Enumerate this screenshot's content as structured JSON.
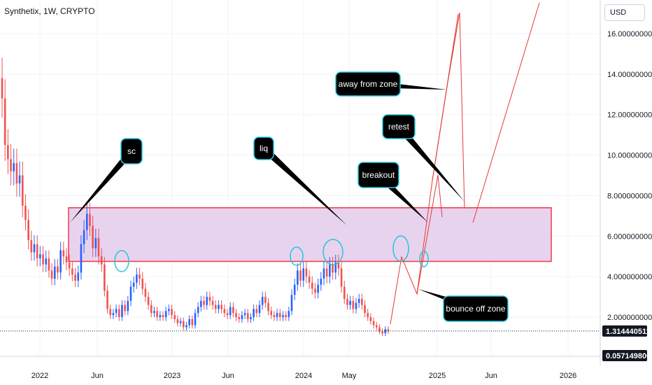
{
  "header": {
    "title": "Synthetix, 1W, CRYPTO",
    "currency": "USD"
  },
  "colors": {
    "up": "#2962ff",
    "down": "#ef5350",
    "zone_fill": "#e8d3ef",
    "zone_border": "#f23645",
    "callout_bg": "#000000",
    "callout_border": "#26c6da",
    "price_badge": "#131722",
    "grid": "#f0f3fa"
  },
  "chart_data": {
    "type": "candlestick",
    "symbol": "Synthetix",
    "interval": "1W",
    "exchange": "CRYPTO",
    "ylim": [
      0,
      17.5
    ],
    "y_ticks": [
      {
        "value": 16,
        "label": "16.000000000"
      },
      {
        "value": 14,
        "label": "14.000000000"
      },
      {
        "value": 12,
        "label": "12.000000000"
      },
      {
        "value": 10,
        "label": "10.000000000"
      },
      {
        "value": 8,
        "label": "8.000000000"
      },
      {
        "value": 6,
        "label": "6.000000000"
      },
      {
        "value": 4,
        "label": "4.000000000"
      },
      {
        "value": 2,
        "label": "2.000000000"
      }
    ],
    "x_ticks": [
      {
        "label": "2022",
        "pos": 57
      },
      {
        "label": "Jun",
        "pos": 139
      },
      {
        "label": "2023",
        "pos": 246
      },
      {
        "label": "Jun",
        "pos": 326
      },
      {
        "label": "2024",
        "pos": 434
      },
      {
        "label": "May",
        "pos": 499
      },
      {
        "label": "2025",
        "pos": 625
      },
      {
        "label": "Jun",
        "pos": 702
      },
      {
        "label": "2026",
        "pos": 812
      }
    ],
    "last_price": {
      "value": 1.3144,
      "label": "1.314440511"
    },
    "low_marker": {
      "value": 0.0571,
      "label": "0.057149800"
    },
    "zone": {
      "low": 4.75,
      "high": 7.4
    },
    "annotations": [
      {
        "text": "sc",
        "target": 6.4
      },
      {
        "text": "liq",
        "target": 6.9
      },
      {
        "text": "breakout",
        "target": 6.5
      },
      {
        "text": "retest",
        "target": 7.5
      },
      {
        "text": "away from zone",
        "target": 13.5
      },
      {
        "text": "bounce off zone",
        "target": 3.7
      }
    ],
    "close_series": [
      12.8,
      10.5,
      9.8,
      9.2,
      9.6,
      8.6,
      9.0,
      7.5,
      6.8,
      5.8,
      5.2,
      5.6,
      4.9,
      5.1,
      4.6,
      4.9,
      4.3,
      3.9,
      4.5,
      4.2,
      5.3,
      5.0,
      4.7,
      4.4,
      4.1,
      3.8,
      4.2,
      5.6,
      6.3,
      7.1,
      6.5,
      5.4,
      5.9,
      5.0,
      4.6,
      3.3,
      2.4,
      2.1,
      2.2,
      2.4,
      2.0,
      2.6,
      2.3,
      2.8,
      3.5,
      3.7,
      4.1,
      3.9,
      3.4,
      3.0,
      2.6,
      2.2,
      2.3,
      2.0,
      2.1,
      2.0,
      2.3,
      2.4,
      2.1,
      1.9,
      1.7,
      1.8,
      1.5,
      1.6,
      1.9,
      1.6,
      2.2,
      2.5,
      2.8,
      2.6,
      3.0,
      2.8,
      2.6,
      2.4,
      2.6,
      2.4,
      2.2,
      2.1,
      2.5,
      2.2,
      2.0,
      1.9,
      2.1,
      2.2,
      1.9,
      2.0,
      2.4,
      2.2,
      2.6,
      3.0,
      2.7,
      2.3,
      2.1,
      2.0,
      2.2,
      2.0,
      2.1,
      2.0,
      2.3,
      3.1,
      3.6,
      4.3,
      3.8,
      4.4,
      4.0,
      3.7,
      3.4,
      3.2,
      3.6,
      3.9,
      4.4,
      4.0,
      4.6,
      4.2,
      4.7,
      4.4,
      3.5,
      2.9,
      2.6,
      2.8,
      2.4,
      2.7,
      2.9,
      2.6,
      2.2,
      2.0,
      1.8,
      1.6,
      1.5,
      1.3,
      1.2,
      1.4,
      1.3
    ]
  }
}
